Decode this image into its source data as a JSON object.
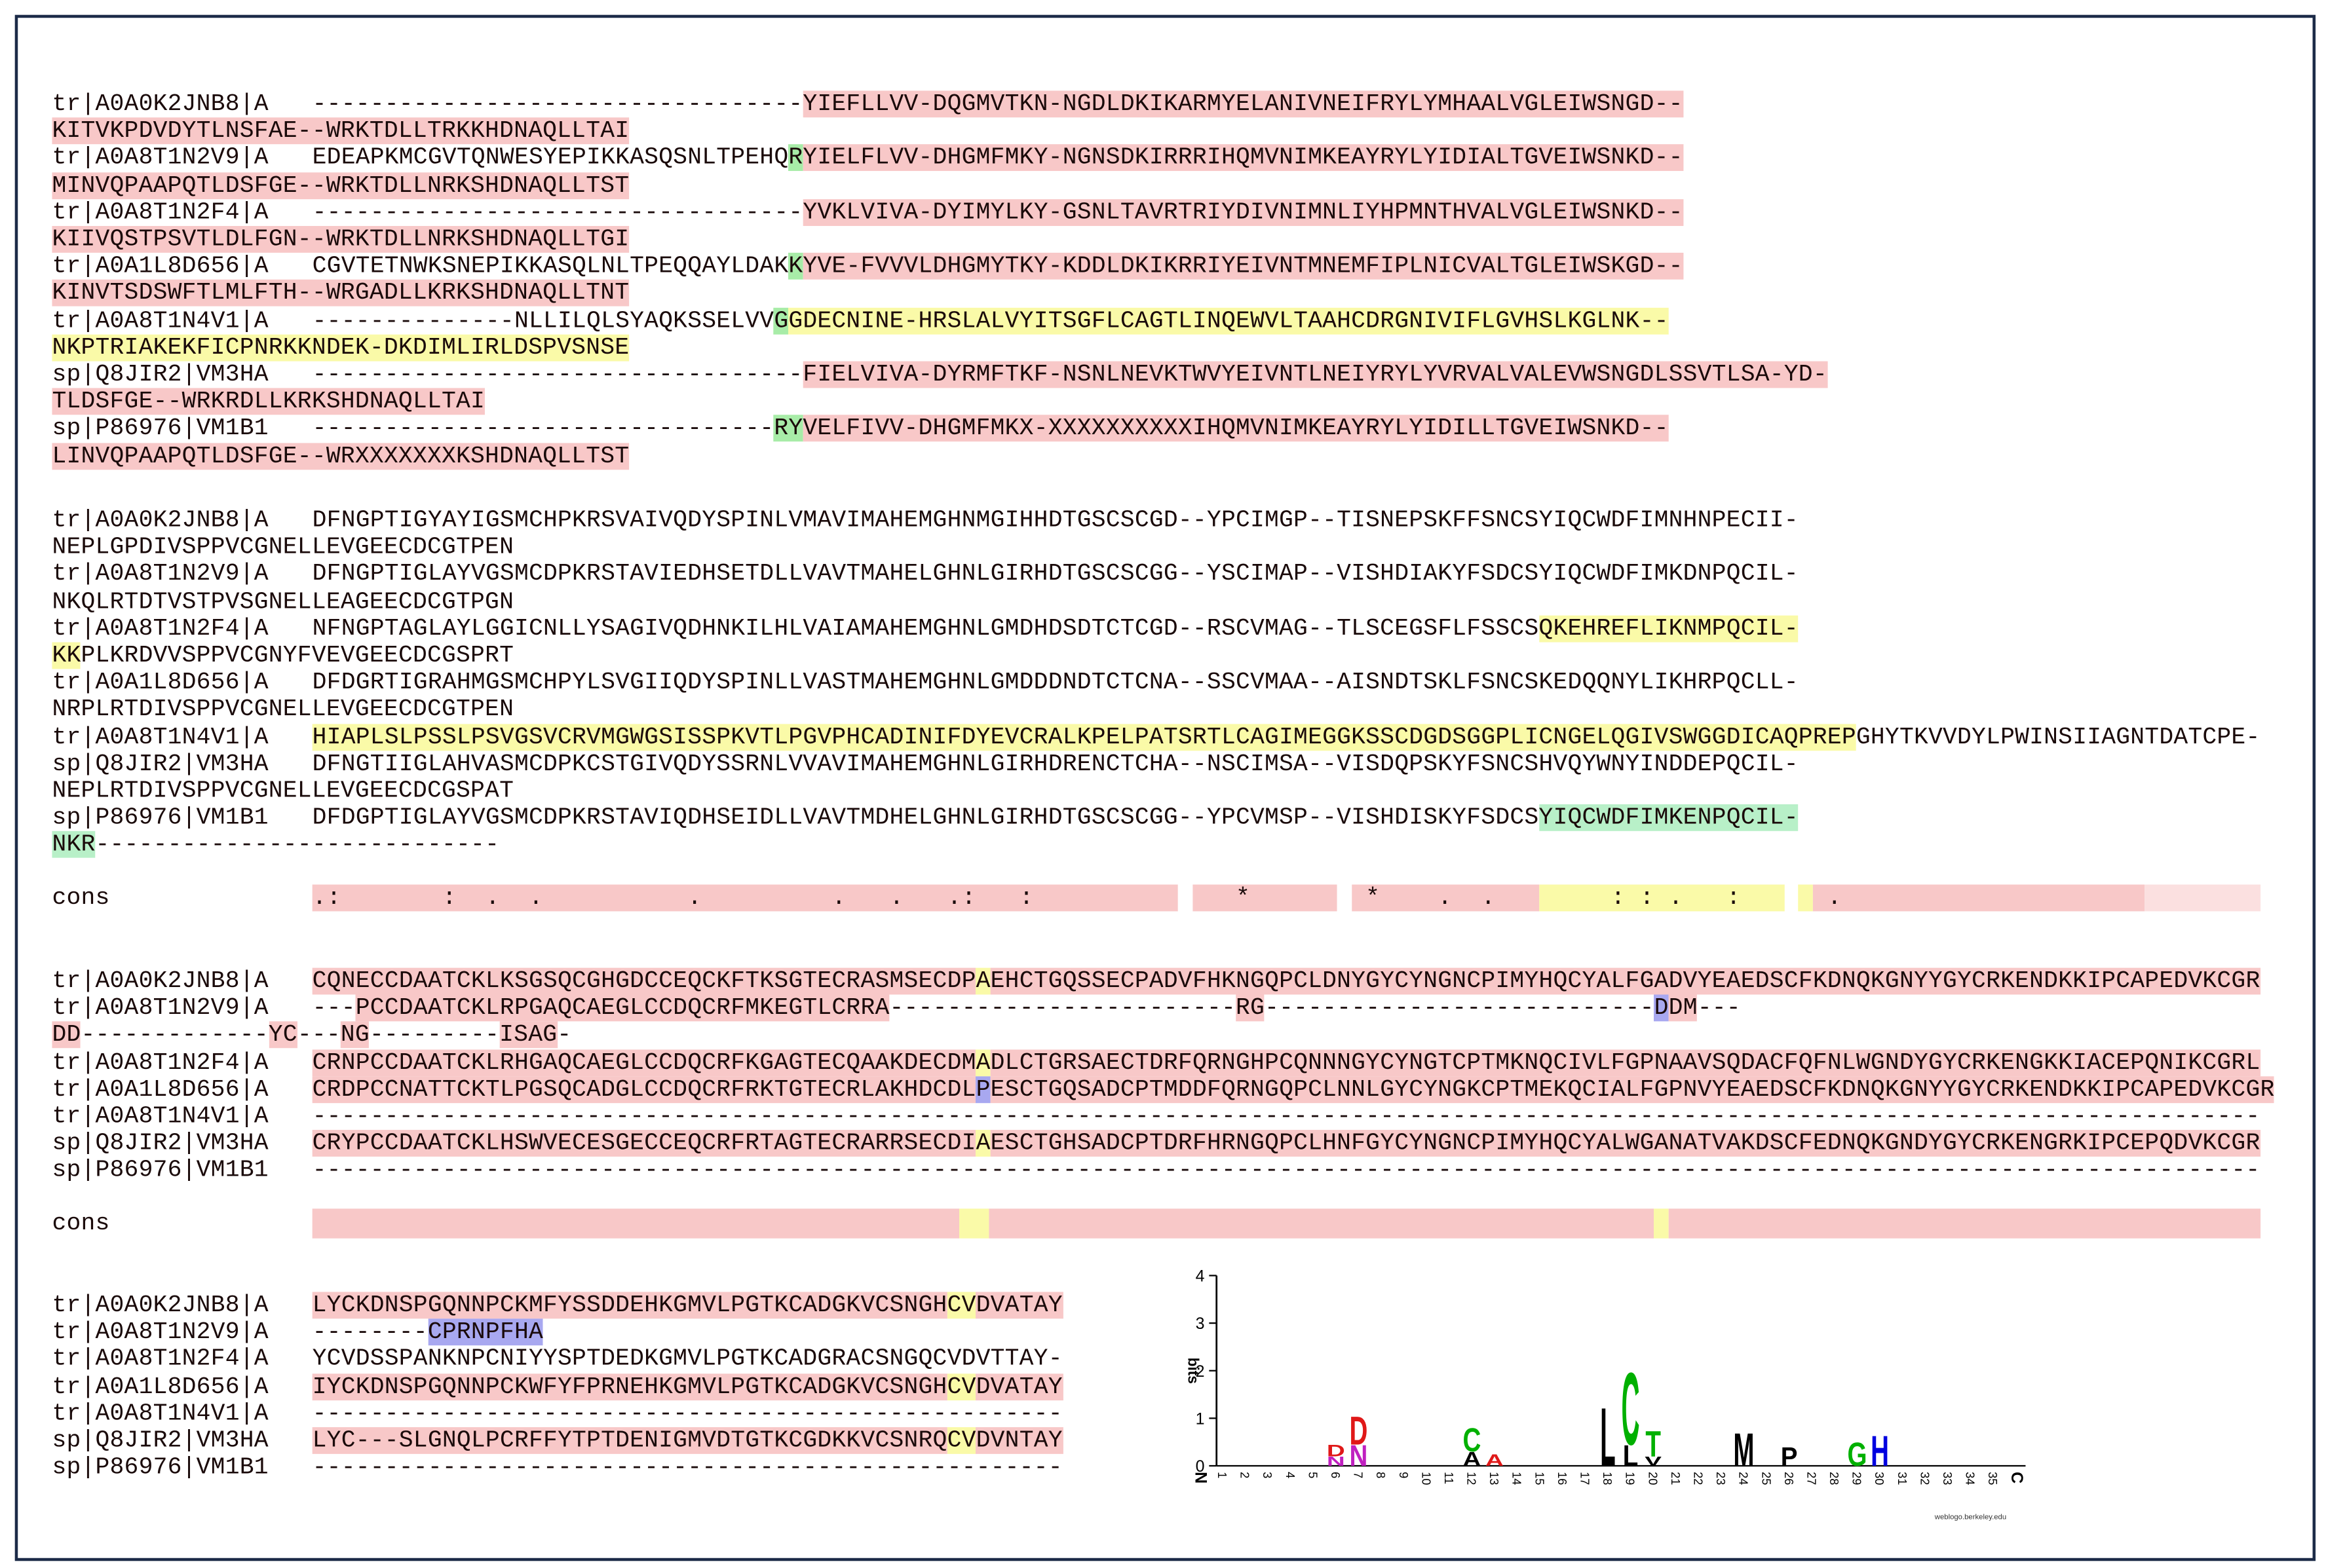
{
  "alignment": {
    "blocks": [
      {
        "lines": [
          {
            "label": "tr|A0A0K2JNB8|A",
            "seq": [
              {
                "text": "----------------------------------"
              },
              {
                "text": "YIEFLLVV-DQGMVTKN-NGDLDKIKARMYELANIVNEIFRYLYMHAALVGLEIWSNGD--",
                "bg": "#f8c8c8"
              }
            ]
          },
          {
            "seq": [
              {
                "text": "KITVKPDVDYTLNSFAE--WRKTDLLTRKKHDNAQLLTAI",
                "bg": "#f8c8c8"
              }
            ]
          },
          {
            "label": "tr|A0A8T1N2V9|A",
            "seq": [
              {
                "text": "EDEAPKMCGVTQNWESYEPIKKASQSNLTPEHQ"
              },
              {
                "text": "R",
                "bg": "#a8eca8"
              },
              {
                "text": "YIELFLVV-DHGMFMKY-NGNSDKIRRRIHQMVNIMKEAYRYLYIDIALTGVEIWSNKD--",
                "bg": "#f8c8c8"
              }
            ]
          },
          {
            "seq": [
              {
                "text": "MINVQPAAPQTLDSFGE--WRKTDLLNRKSHDNAQLLTST",
                "bg": "#f8c8c8"
              }
            ]
          },
          {
            "label": "tr|A0A8T1N2F4|A",
            "seq": [
              {
                "text": "----------------------------------"
              },
              {
                "text": "YVKLVIVA-DYIMYLKY-GSNLTAVRTRIYDIVNIMNLIYHPMNTHVALVGLEIWSNKD--",
                "bg": "#f8c8c8"
              }
            ]
          },
          {
            "seq": [
              {
                "text": "KIIVQSTPSVTLDLFGN--WRKTDLLNRKSHDNAQLLTGI",
                "bg": "#f8c8c8"
              }
            ]
          },
          {
            "label": "tr|A0A1L8D656|A",
            "seq": [
              {
                "text": "CGVTETNWKSNEPIKKASQLNLTPEQQAYLDAK"
              },
              {
                "text": "K",
                "bg": "#a8eca8"
              },
              {
                "text": "YVE-FVVVLDHGMYTKY-KDDLDKIKRRIYEIVNTMNEMFIPLNICVALTGLEIWSKGD--",
                "bg": "#f8c8c8"
              }
            ]
          },
          {
            "seq": [
              {
                "text": "KINVTSDSWFTLMLFTH--WRGADLLKRKSHDNAQLLTNT",
                "bg": "#f8c8c8"
              }
            ]
          },
          {
            "label": "tr|A0A8T1N4V1|A",
            "seq": [
              {
                "text": "--------------NLLILQLSYAQKSSELVV"
              },
              {
                "text": "G",
                "bg": "#a8eca8"
              },
              {
                "text": "GDECNINE-HRSLALVYITSGFLCAGTLINQEWVLTAAHCDRGNIVIFLGVHSLKGLNK--",
                "bg": "#fafaa8"
              }
            ]
          },
          {
            "seq": [
              {
                "text": "NKPTRIAKEKFICPNRKKNDEK-DKDIMLIRLDSPVSNSE",
                "bg": "#fafaa8"
              }
            ]
          },
          {
            "label": "sp|Q8JIR2|VM3HA",
            "seq": [
              {
                "text": "----------------------------------"
              },
              {
                "text": "FIELVIVA-DYRMFTKF-NSNLNEVKTWVYEIVNTLNEIYRYLYVRVALVALEVWSNGDLSSVTLSA-YD-",
                "bg": "#f8c8c8"
              }
            ]
          },
          {
            "seq": [
              {
                "text": "TLDSFGE--WRKRDLLKRKSHDNAQLLTAI",
                "bg": "#f8c8c8"
              }
            ]
          },
          {
            "label": "sp|P86976|VM1B1",
            "seq": [
              {
                "text": "--------------------------------"
              },
              {
                "text": "RY",
                "bg": "#a8eca8"
              },
              {
                "text": "VELFIVV-DHGMFMKX-XXXXXXXXXXIHQMVNIMKEAYRYLYIDILLTGVEIWSNKD--",
                "bg": "#f8c8c8"
              }
            ]
          },
          {
            "seq": [
              {
                "text": "LINVQPAAPQTLDSFGE--WRXXXXXXXKSHDNAQLLTST",
                "bg": "#f8c8c8"
              }
            ]
          }
        ]
      },
      {
        "lines": [
          {
            "label": "tr|A0A0K2JNB8|A",
            "seq": [
              {
                "text": "DFNGPTIGYAYIGSMCHPKRSVAIVQDYSPINLVMAVIMAHEMGHNMGIHHDTGSCSCGD--YPCIMGP--TISNEPSKFFSNCSYIQCWDFIMNHNPECII-"
              }
            ]
          },
          {
            "seq": [
              {
                "text": "NEPLGPDIVSPPVCGNELLEVGEECDCGTPEN"
              }
            ]
          },
          {
            "label": "tr|A0A8T1N2V9|A",
            "seq": [
              {
                "text": "DFNGPTIGLAYVGSMCDPKRSTAVIEDHSETDLLVAVTMAHELGHNLGIRHDTGSCSCGG--YSCIMAP--VISHDIAKYFSDCSYIQCWDFIMKDNPQCIL-"
              }
            ]
          },
          {
            "seq": [
              {
                "text": "NKQLRTDTVSTPVSGNELLEAGEECDCGTPGN"
              }
            ]
          },
          {
            "label": "tr|A0A8T1N2F4|A",
            "seq": [
              {
                "text": "NFNGPTAGLAYLGGICNLLYSAGIVQDHNKILHLVAIAMAHEMGHNLGMDHDSDTCTCGD--RSCVMAG--TLSCEGSFLFSSCS"
              },
              {
                "text": "QKEHREFLIKNMPQCIL-",
                "bg": "#fafaa8"
              }
            ]
          },
          {
            "seq": [
              {
                "text": "KK",
                "bg": "#fafaa8"
              },
              {
                "text": "PLKRDVVSPPVCGNYFVEVGEECDCGSPRT"
              }
            ]
          },
          {
            "label": "tr|A0A1L8D656|A",
            "seq": [
              {
                "text": "DFDGRTIGRAHMGSMCHPYLSVGIIQDYSPINLLVASTMAHEMGHNLGMDDDNDTCTCNA--SSCVMAA--AISNDTSKLFSNCSKEDQQNYLIKHRPQCLL-"
              }
            ]
          },
          {
            "seq": [
              {
                "text": "NRPLRTDIVSPPVCGNELLEVGEECDCGTPEN"
              }
            ]
          },
          {
            "label": "tr|A0A8T1N4V1|A",
            "seq": [
              {
                "text": "HIAPLSLPSSLPSVGSVCRVMGWGSISSPKVTLPGVPHCADINIFDYEVCRALKPELPATSRTLCAGIMEGGKSSCDGDSGGPLICNGELQGIVSWGGDICAQPREP",
                "bg": "#fafaa8"
              },
              {
                "text": "GHYTKVVDYLPWINSIIAGNTDATCPE-"
              }
            ]
          },
          {
            "label": "sp|Q8JIR2|VM3HA",
            "seq": [
              {
                "text": "DFNGTIIGLAHVASMCDPKCSTGIVQDYSSRNLVVAVIMAHEMGHNLGIRHDRENCTCHA--NSCIMSA--VISDQPSKYFSNCSHVQYWNYINDDEPQCIL-"
              }
            ]
          },
          {
            "seq": [
              {
                "text": "NEPLRTDIVSPPVCGNELLEVGEECDCGSPAT"
              }
            ]
          },
          {
            "label": "sp|P86976|VM1B1",
            "seq": [
              {
                "text": "DFDGPTIGLAYVGSMCDPKRSTAVIQDHSEIDLLVAVTMDHELGHNLGIRHDTGSCSCGG--YPCVMSP--VISHDISKYFSDCS"
              },
              {
                "text": "YIQCWDFIMKENPQCIL-",
                "bg": "#b8f0c8"
              }
            ]
          },
          {
            "seq": [
              {
                "text": "NKR",
                "bg": "#b8f0c8"
              },
              {
                "text": "----------------------------"
              }
            ]
          }
        ],
        "consensus": {
          "label": "cons",
          "seq": [
            {
              "text": ".:       :  .  .          .         .   .   .:   :          ",
              "bg": "#f8c8c8"
            },
            {
              "text": " "
            },
            {
              "text": "   *      ",
              "bg": "#f8c8c8"
            },
            {
              "text": " "
            },
            {
              "text": " *    .  .   ",
              "bg": "#f8c8c8"
            },
            {
              "text": "     : : .   :   ",
              "bg": "#fafaa8"
            },
            {
              "text": " "
            },
            {
              "text": " ",
              "bg": "#fafaa8"
            },
            {
              "text": " .                     ",
              "bg": "#f8c8c8"
            },
            {
              "text": "        ",
              "bg": "#fbe0e0"
            }
          ]
        }
      },
      {
        "lines": [
          {
            "label": "tr|A0A0K2JNB8|A",
            "seq": [
              {
                "text": "CQNECCDAATCKLKSGSQCGHGDCCEQCKFTKSGTECRASMSECDP",
                "bg": "#f8c8c8"
              },
              {
                "text": "A",
                "bg": "#fafaa8"
              },
              {
                "text": "EHCTGQSSECPADVFHKNGQPCLDNYGYCYNGNCPIMYHQCYALFGADVYEAEDSCFKDNQKGNYYGYCRKENDKKIPCAPEDVKCGR",
                "bg": "#f8c8c8"
              }
            ]
          },
          {
            "label": "tr|A0A8T1N2V9|A",
            "seq": [
              {
                "text": "---"
              },
              {
                "text": "PCCDAATCKLRPGAQCAEGLCCDQCRFMKEGTLCRRA",
                "bg": "#f8c8c8"
              },
              {
                "text": "------------------------"
              },
              {
                "text": "RG",
                "bg": "#f8c8c8"
              },
              {
                "text": "---------------------------"
              },
              {
                "text": "D",
                "bg": "#a8a8f0"
              },
              {
                "text": "DM",
                "bg": "#f8c8c8"
              },
              {
                "text": "---"
              }
            ]
          },
          {
            "seq": [
              {
                "text": "DD",
                "bg": "#f8c8c8"
              },
              {
                "text": "-------------"
              },
              {
                "text": "YC",
                "bg": "#f8c8c8"
              },
              {
                "text": "---"
              },
              {
                "text": "NG",
                "bg": "#f8c8c8"
              },
              {
                "text": "---------"
              },
              {
                "text": "ISAG",
                "bg": "#f8c8c8"
              },
              {
                "text": "-"
              }
            ]
          },
          {
            "label": "tr|A0A8T1N2F4|A",
            "seq": [
              {
                "text": "CRNPCCDAATCKLRHGAQCAEGLCCDQCRFKGAGTECQAAKDECDM",
                "bg": "#f8c8c8"
              },
              {
                "text": "A",
                "bg": "#fafaa8"
              },
              {
                "text": "DLCTGRSAECTDRFQRNGHPCQNNNGYCYNGTCPTMKNQCIVLFGPNAAVSQDACFQFNLWGNDYGYCRKENGKKIACEPQNIKCGRL",
                "bg": "#f8c8c8"
              }
            ]
          },
          {
            "label": "tr|A0A1L8D656|A",
            "seq": [
              {
                "text": "CRDPCCNATTCKTLPGSQCADGLCCDQCRFRKTGTECRLAKHDCDL",
                "bg": "#f8c8c8"
              },
              {
                "text": "P",
                "bg": "#a8a8f0"
              },
              {
                "text": "ESCTGQSADCPTMDDFQRNGQPCLNNLGYCYNGKCPTMEKQCIALFGPNVYEAEDSCFKDNQKGNYYGYCRKENDKKIPCAPEDVKCGR",
                "bg": "#f8c8c8"
              }
            ]
          },
          {
            "label": "tr|A0A8T1N4V1|A",
            "seq": [
              {
                "text": "---------------------------------------------------------------------------------------------------------------------------------------"
              }
            ]
          },
          {
            "label": "sp|Q8JIR2|VM3HA",
            "seq": [
              {
                "text": "CRYPCCDAATCKLHSWVECESGECCEQCRFRTAGTECRARRSECDI",
                "bg": "#f8c8c8"
              },
              {
                "text": "A",
                "bg": "#fafaa8"
              },
              {
                "text": "ESCTGHSADCPTDRFHRNGQPCLHNFGYCYNGNCPIMYHQCYALWGANATVAKDSCFEDNQKGNDYGYCRKENGRKIPCEPQDVKCGR",
                "bg": "#f8c8c8"
              }
            ]
          },
          {
            "label": "sp|P86976|VM1B1",
            "seq": [
              {
                "text": "---------------------------------------------------------------------------------------------------------------------------------------"
              }
            ]
          }
        ],
        "consensus": {
          "label": "cons"
        }
      },
      {
        "lines": [
          {
            "label": "tr|A0A0K2JNB8|A",
            "seq": [
              {
                "text": "LYCKDNSPGQNNPCKMFYSSDDEHKGMVLPGTKCADGKVCSNGH",
                "bg": "#f8c8c8"
              },
              {
                "text": "CV",
                "bg": "#fafaa8"
              },
              {
                "text": "DVATAY",
                "bg": "#f8c8c8"
              }
            ]
          },
          {
            "label": "tr|A0A8T1N2V9|A",
            "seq": [
              {
                "text": "--------"
              },
              {
                "text": "CPRNPFHA",
                "bg": "#a8a8f0"
              }
            ]
          },
          {
            "label": "tr|A0A8T1N2F4|A",
            "seq": [
              {
                "text": "YCVDSSPANKNPCNIYYSPTDEDKGMVLPGTKCADGRACSNGQCVDVTTAY-"
              }
            ]
          },
          {
            "label": "tr|A0A1L8D656|A",
            "seq": [
              {
                "text": "IYCKDNSPGQNNPCKWFYFPRNEHKGMVLPGTKCADGKVCSNGH",
                "bg": "#f8c8c8"
              },
              {
                "text": "CV",
                "bg": "#fafaa8"
              },
              {
                "text": "DVATAY",
                "bg": "#f8c8c8"
              }
            ]
          },
          {
            "label": "tr|A0A8T1N4V1|A",
            "seq": [
              {
                "text": "----------------------------------------------------"
              }
            ]
          },
          {
            "label": "sp|Q8JIR2|VM3HA",
            "seq": [
              {
                "text": "LYC---SLGNQLPCRFFYTPTDENIGMVDTGTKCGDKKVCSNRQ",
                "bg": "#f8c8c8"
              },
              {
                "text": "CV",
                "bg": "#fafaa8"
              },
              {
                "text": "DVNTAY",
                "bg": "#f8c8c8"
              }
            ]
          },
          {
            "label": "sp|P86976|VM1B1",
            "seq": [
              {
                "text": "----------------------------------------------------"
              }
            ]
          }
        ]
      }
    ]
  },
  "logo": {
    "ylabel": "bits",
    "ylim": [
      0,
      4
    ],
    "yticks": [
      0,
      1,
      2,
      3,
      4
    ],
    "positions": [
      "N",
      "1",
      "2",
      "3",
      "4",
      "5",
      "6",
      "7",
      "8",
      "9",
      "10",
      "11",
      "12",
      "13",
      "14",
      "15",
      "16",
      "17",
      "18",
      "19",
      "20",
      "21",
      "22",
      "23",
      "24",
      "25",
      "26",
      "27",
      "28",
      "29",
      "30",
      "31",
      "32",
      "33",
      "34",
      "35",
      "C"
    ],
    "stacks": [
      {
        "x": 6,
        "letters": [
          {
            "letter": "N",
            "height": 0.2,
            "color": "#c020c0"
          },
          {
            "letter": "D",
            "height": 0.25,
            "color": "#e01818"
          }
        ]
      },
      {
        "x": 7,
        "letters": [
          {
            "letter": "N",
            "height": 0.45,
            "color": "#c020c0"
          },
          {
            "letter": "D",
            "height": 0.6,
            "color": "#e01818"
          }
        ]
      },
      {
        "x": 12,
        "letters": [
          {
            "letter": "A",
            "height": 0.3,
            "color": "#000000"
          },
          {
            "letter": "C",
            "height": 0.5,
            "color": "#00b000"
          }
        ]
      },
      {
        "x": 13,
        "letters": [
          {
            "letter": "A",
            "height": 0.25,
            "color": "#e01818"
          }
        ]
      },
      {
        "x": 18,
        "letters": [
          {
            "letter": "L",
            "height": 1.25,
            "color": "#000000"
          }
        ]
      },
      {
        "x": 19,
        "letters": [
          {
            "letter": "L",
            "height": 0.45,
            "color": "#000000"
          },
          {
            "letter": "C",
            "height": 1.55,
            "color": "#00b000"
          }
        ]
      },
      {
        "x": 20,
        "letters": [
          {
            "letter": "V",
            "height": 0.2,
            "color": "#000000"
          },
          {
            "letter": "T",
            "height": 0.55,
            "color": "#00b000"
          }
        ]
      },
      {
        "x": 24,
        "letters": [
          {
            "letter": "M",
            "height": 0.7,
            "color": "#000000"
          }
        ]
      },
      {
        "x": 26,
        "letters": [
          {
            "letter": "P",
            "height": 0.4,
            "color": "#000000"
          }
        ]
      },
      {
        "x": 29,
        "letters": [
          {
            "letter": "G",
            "height": 0.5,
            "color": "#00b000"
          }
        ]
      },
      {
        "x": 30,
        "letters": [
          {
            "letter": "H",
            "height": 0.65,
            "color": "#0000e0"
          }
        ]
      }
    ],
    "credit": "weblogo.berkeley.edu"
  }
}
